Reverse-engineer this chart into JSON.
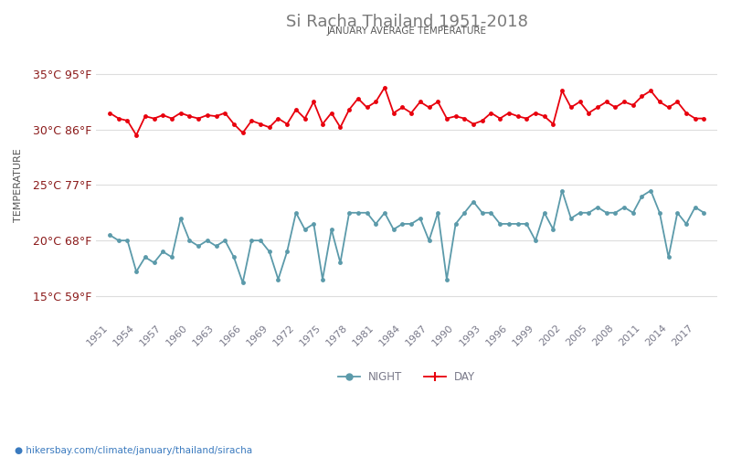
{
  "title": "Si Racha Thailand 1951-2018",
  "subtitle": "JANUARY AVERAGE TEMPERATURE",
  "ylabel": "TEMPERATURE",
  "url": "hikersbay.com/climate/january/thailand/siracha",
  "years": [
    1951,
    1952,
    1953,
    1954,
    1955,
    1956,
    1957,
    1958,
    1959,
    1960,
    1961,
    1962,
    1963,
    1964,
    1965,
    1966,
    1967,
    1968,
    1969,
    1970,
    1971,
    1972,
    1973,
    1974,
    1975,
    1976,
    1977,
    1978,
    1979,
    1980,
    1981,
    1982,
    1983,
    1984,
    1985,
    1986,
    1987,
    1988,
    1989,
    1990,
    1991,
    1992,
    1993,
    1994,
    1995,
    1996,
    1997,
    1998,
    1999,
    2000,
    2001,
    2002,
    2003,
    2004,
    2005,
    2006,
    2007,
    2008,
    2009,
    2010,
    2011,
    2012,
    2013,
    2014,
    2015,
    2016,
    2017,
    2018
  ],
  "day_temps": [
    31.5,
    31.0,
    30.8,
    29.5,
    31.2,
    31.0,
    31.3,
    31.0,
    31.5,
    31.2,
    31.0,
    31.3,
    31.2,
    31.5,
    30.5,
    29.7,
    30.8,
    30.5,
    30.2,
    31.0,
    30.5,
    31.8,
    31.0,
    32.5,
    30.5,
    31.5,
    30.2,
    31.8,
    32.8,
    32.0,
    32.5,
    33.8,
    31.5,
    32.0,
    31.5,
    32.5,
    32.0,
    32.5,
    31.0,
    31.2,
    31.0,
    30.5,
    30.8,
    31.5,
    31.0,
    31.5,
    31.2,
    31.0,
    31.5,
    31.2,
    30.5,
    33.5,
    32.0,
    32.5,
    31.5,
    32.0,
    32.5,
    32.0,
    32.5,
    32.2,
    33.0,
    33.5,
    32.5,
    32.0,
    32.5,
    31.5,
    31.0,
    31.0
  ],
  "night_temps": [
    20.5,
    20.0,
    20.0,
    17.2,
    18.5,
    18.0,
    19.0,
    18.5,
    22.0,
    20.0,
    19.5,
    20.0,
    19.5,
    20.0,
    18.5,
    16.2,
    20.0,
    20.0,
    19.0,
    16.5,
    19.0,
    22.5,
    21.0,
    21.5,
    16.5,
    21.0,
    18.0,
    22.5,
    22.5,
    22.5,
    21.5,
    22.5,
    21.0,
    21.5,
    21.5,
    22.0,
    20.0,
    22.5,
    16.5,
    21.5,
    22.5,
    23.5,
    22.5,
    22.5,
    21.5,
    21.5,
    21.5,
    21.5,
    20.0,
    22.5,
    21.0,
    24.5,
    22.0,
    22.5,
    22.5,
    23.0,
    22.5,
    22.5,
    23.0,
    22.5,
    24.0,
    24.5,
    22.5,
    18.5,
    22.5,
    21.5,
    23.0,
    22.5
  ],
  "day_color": "#e8000d",
  "night_color": "#5b9aaa",
  "title_color": "#7a7a7a",
  "subtitle_color": "#5a5a5a",
  "ylabel_color": "#555555",
  "tick_label_color": "#8b1a1a",
  "axis_label_color": "#7a7a8a",
  "grid_color": "#dddddd",
  "background_color": "#ffffff",
  "ylim": [
    13,
    37
  ],
  "yticks_celsius": [
    15,
    20,
    25,
    30,
    35
  ],
  "yticks_fahrenheit": [
    59,
    68,
    77,
    86,
    95
  ],
  "xtick_years": [
    1951,
    1954,
    1957,
    1960,
    1963,
    1966,
    1969,
    1972,
    1975,
    1978,
    1981,
    1984,
    1987,
    1990,
    1993,
    1996,
    1999,
    2002,
    2005,
    2008,
    2011,
    2014,
    2017
  ],
  "legend_night": "NIGHT",
  "legend_day": "DAY",
  "url_color": "#3a7abf",
  "marker_size": 3.5,
  "line_width": 1.3
}
